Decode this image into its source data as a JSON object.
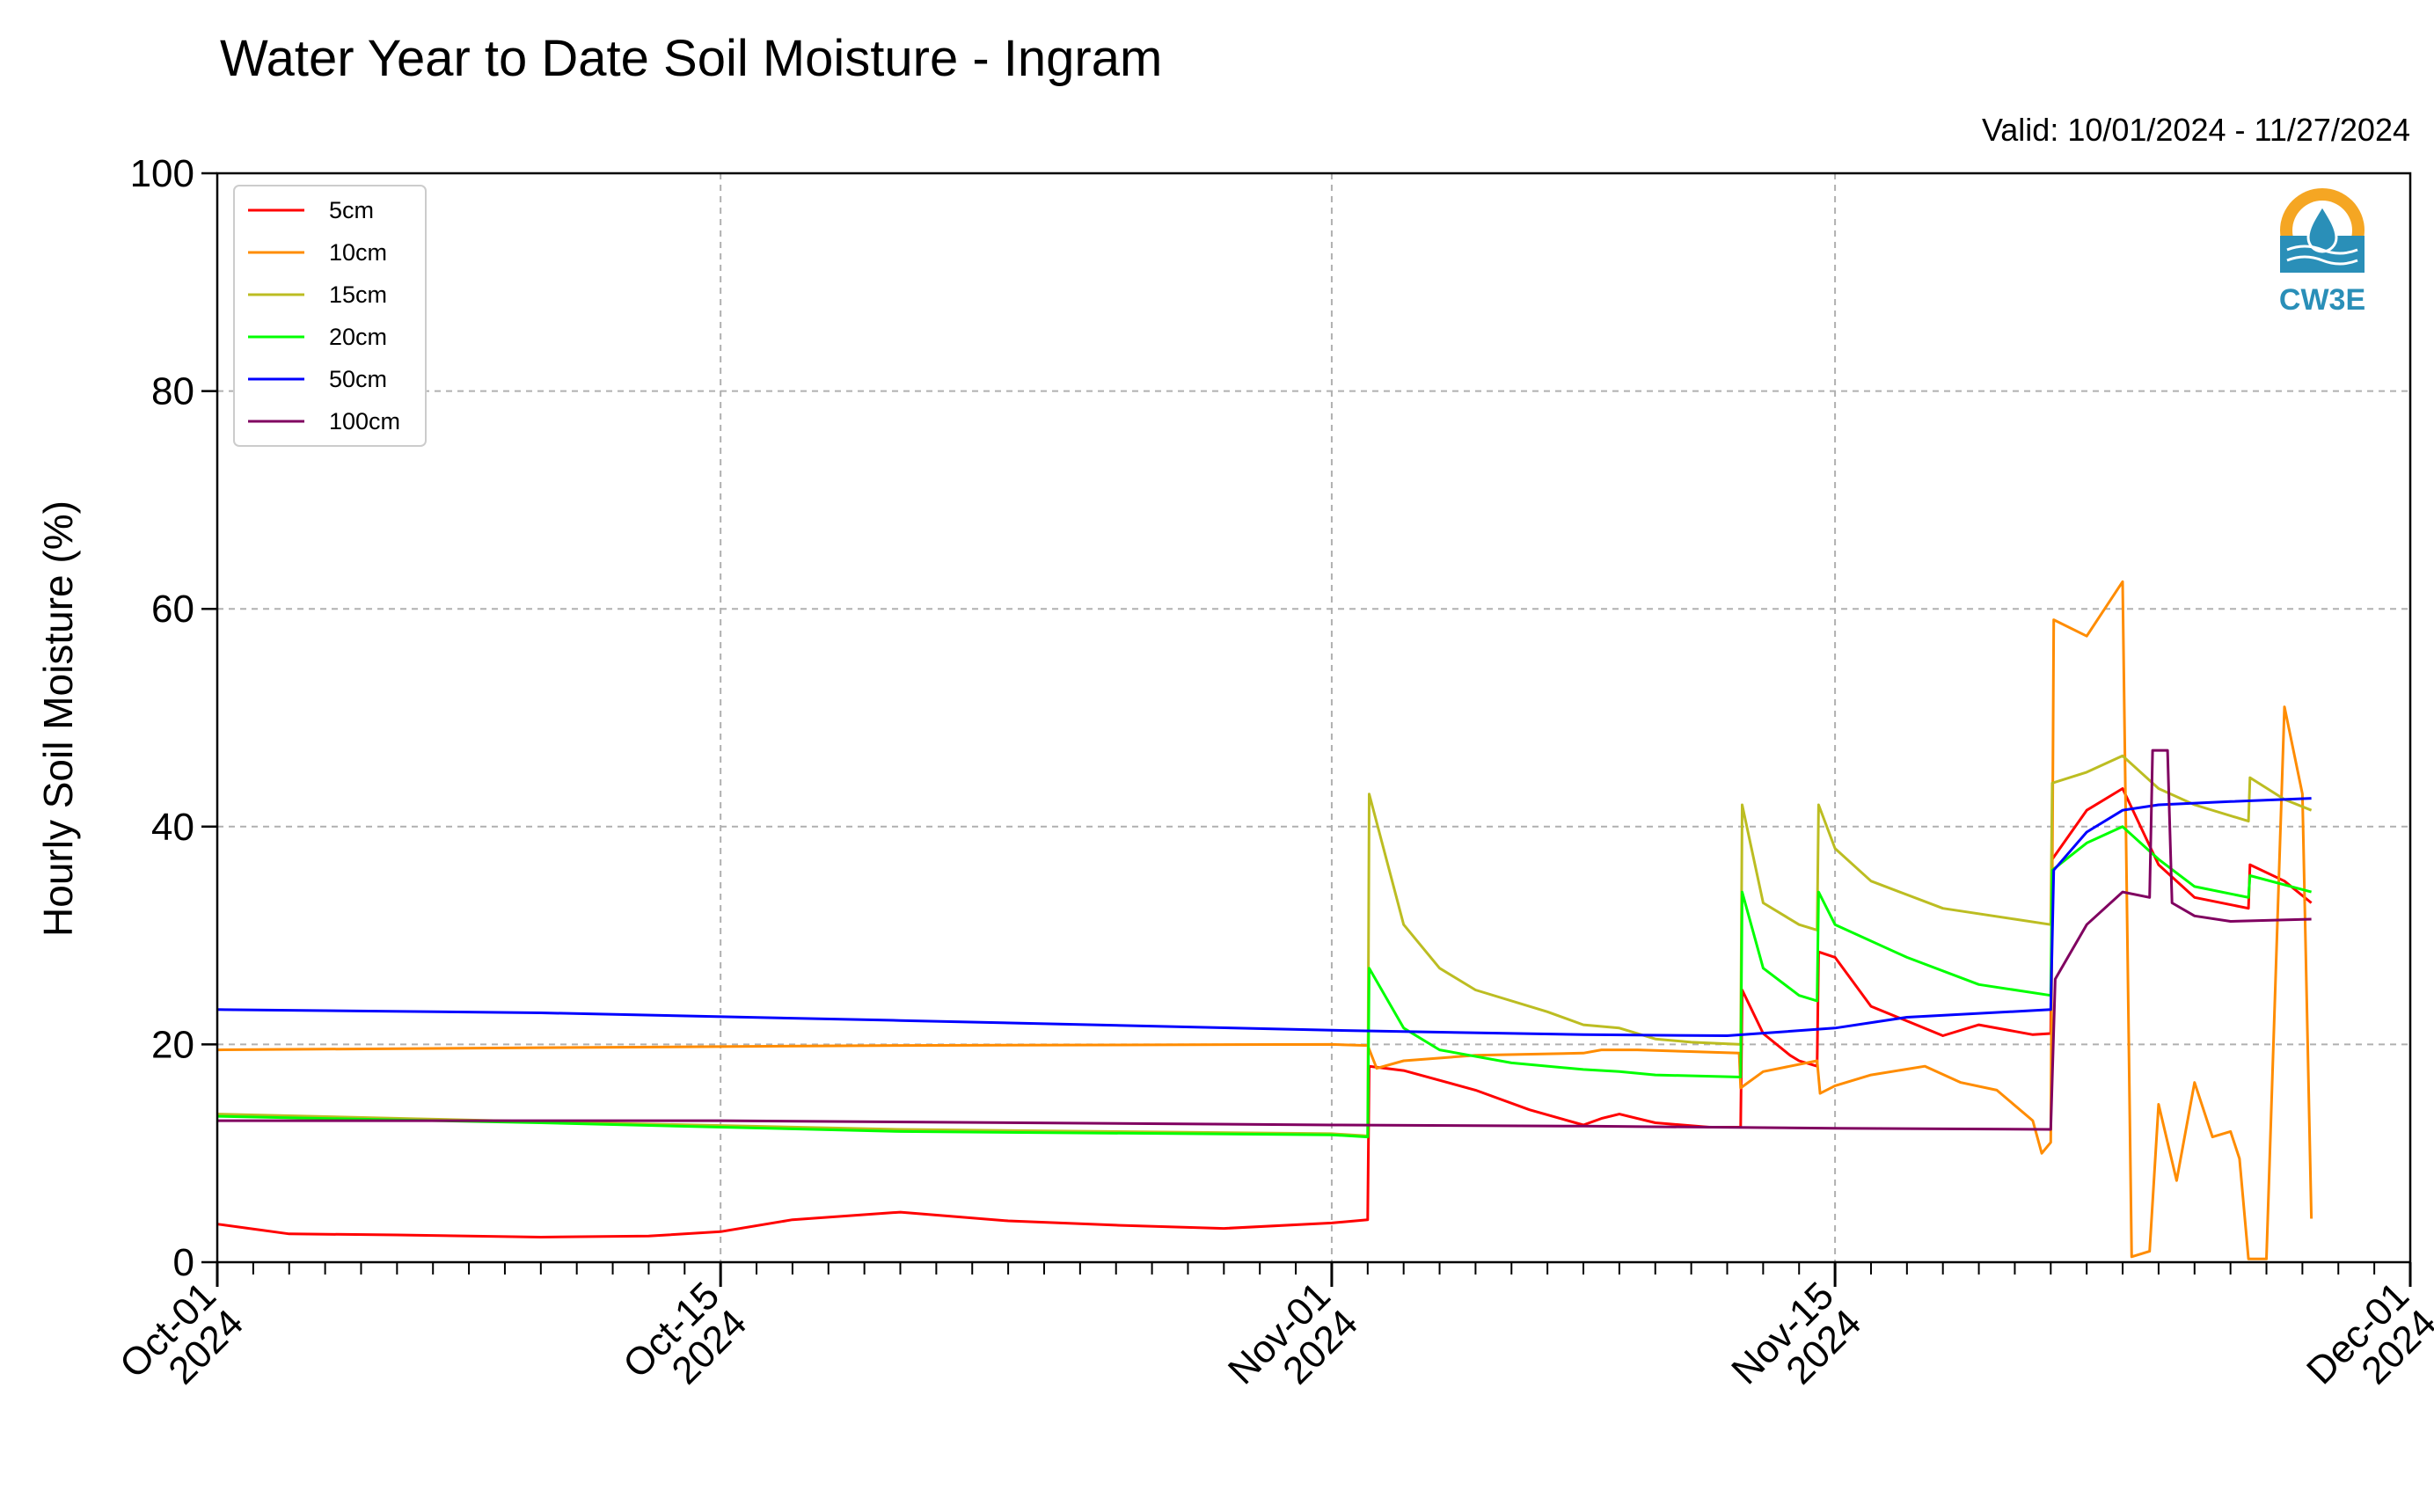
{
  "chart_data": {
    "type": "line",
    "title": "Water Year to Date Soil Moisture - Ingram",
    "subtitle": "Valid: 10/01/2024 - 11/27/2024",
    "ylabel": "Hourly Soil Moisture (%)",
    "xlabel": "",
    "x_range": [
      "2024-10-01",
      "2024-12-01"
    ],
    "ylim": [
      0,
      100
    ],
    "y_ticks": [
      0,
      20,
      40,
      60,
      80,
      100
    ],
    "x_ticks": [
      {
        "date": "2024-10-01",
        "label_line1": "Oct-01",
        "label_line2": "2024"
      },
      {
        "date": "2024-10-15",
        "label_line1": "Oct-15",
        "label_line2": "2024"
      },
      {
        "date": "2024-11-01",
        "label_line1": "Nov-01",
        "label_line2": "2024"
      },
      {
        "date": "2024-11-15",
        "label_line1": "Nov-15",
        "label_line2": "2024"
      },
      {
        "date": "2024-12-01",
        "label_line1": "Dec-01",
        "label_line2": "2024"
      }
    ],
    "grid": true,
    "legend_position": "top-left",
    "logo_text": "CW3E",
    "series": [
      {
        "name": "5cm",
        "color": "#ff0000",
        "points": [
          [
            "2024-10-01T00",
            3.5
          ],
          [
            "2024-10-03T00",
            2.6
          ],
          [
            "2024-10-06T00",
            2.5
          ],
          [
            "2024-10-10T00",
            2.3
          ],
          [
            "2024-10-13T00",
            2.4
          ],
          [
            "2024-10-15T00",
            2.8
          ],
          [
            "2024-10-17T00",
            3.9
          ],
          [
            "2024-10-20T00",
            4.6
          ],
          [
            "2024-10-23T00",
            3.8
          ],
          [
            "2024-10-26T00",
            3.4
          ],
          [
            "2024-10-29T00",
            3.1
          ],
          [
            "2024-11-01T00",
            3.6
          ],
          [
            "2024-11-02T00",
            3.9
          ],
          [
            "2024-11-02T01",
            18.0
          ],
          [
            "2024-11-03T00",
            17.6
          ],
          [
            "2024-11-05T00",
            15.8
          ],
          [
            "2024-11-06T12",
            14.0
          ],
          [
            "2024-11-08T00",
            12.6
          ],
          [
            "2024-11-08T12",
            13.2
          ],
          [
            "2024-11-09T00",
            13.6
          ],
          [
            "2024-11-10T00",
            12.8
          ],
          [
            "2024-11-11T12",
            12.4
          ],
          [
            "2024-11-12T09",
            12.4
          ],
          [
            "2024-11-12T10",
            25.0
          ],
          [
            "2024-11-13T00",
            21.0
          ],
          [
            "2024-11-13T18",
            19.0
          ],
          [
            "2024-11-14T00",
            18.5
          ],
          [
            "2024-11-14T12",
            18.0
          ],
          [
            "2024-11-14T13",
            28.5
          ],
          [
            "2024-11-15T00",
            28.0
          ],
          [
            "2024-11-16T00",
            23.5
          ],
          [
            "2024-11-18T00",
            20.8
          ],
          [
            "2024-11-19T00",
            21.8
          ],
          [
            "2024-11-20T12",
            20.9
          ],
          [
            "2024-11-21T00",
            21.0
          ],
          [
            "2024-11-21T01",
            37.0
          ],
          [
            "2024-11-22T00",
            41.5
          ],
          [
            "2024-11-23T00",
            43.5
          ],
          [
            "2024-11-24T00",
            36.5
          ],
          [
            "2024-11-25T00",
            33.5
          ],
          [
            "2024-11-26T12",
            32.5
          ],
          [
            "2024-11-26T13",
            36.5
          ],
          [
            "2024-11-27T12",
            35.0
          ],
          [
            "2024-11-28T06",
            33.0
          ]
        ]
      },
      {
        "name": "10cm",
        "color": "#ff8c00",
        "points": [
          [
            "2024-10-01T00",
            19.5
          ],
          [
            "2024-10-10T00",
            19.7
          ],
          [
            "2024-10-20T00",
            19.9
          ],
          [
            "2024-11-01T00",
            20.0
          ],
          [
            "2024-11-02T00",
            19.9
          ],
          [
            "2024-11-02T06",
            17.8
          ],
          [
            "2024-11-03T00",
            18.5
          ],
          [
            "2024-11-05T00",
            19.0
          ],
          [
            "2024-11-08T00",
            19.2
          ],
          [
            "2024-11-08T12",
            19.5
          ],
          [
            "2024-11-09T12",
            19.5
          ],
          [
            "2024-11-12T08",
            19.2
          ],
          [
            "2024-11-12T09",
            16.0
          ],
          [
            "2024-11-13T00",
            17.5
          ],
          [
            "2024-11-14T12",
            18.5
          ],
          [
            "2024-11-14T14",
            15.5
          ],
          [
            "2024-11-15T00",
            16.2
          ],
          [
            "2024-11-16T00",
            17.2
          ],
          [
            "2024-11-17T12",
            18.0
          ],
          [
            "2024-11-18T12",
            16.5
          ],
          [
            "2024-11-19T12",
            15.8
          ],
          [
            "2024-11-20T12",
            13.0
          ],
          [
            "2024-11-20T18",
            10.0
          ],
          [
            "2024-11-21T00",
            11.0
          ],
          [
            "2024-11-21T02",
            59.0
          ],
          [
            "2024-11-22T00",
            57.5
          ],
          [
            "2024-11-23T00",
            62.5
          ],
          [
            "2024-11-23T06",
            0.5
          ],
          [
            "2024-11-23T18",
            1.0
          ],
          [
            "2024-11-24T00",
            14.5
          ],
          [
            "2024-11-24T12",
            7.5
          ],
          [
            "2024-11-25T00",
            16.5
          ],
          [
            "2024-11-25T12",
            11.5
          ],
          [
            "2024-11-26T00",
            12.0
          ],
          [
            "2024-11-26T06",
            9.5
          ],
          [
            "2024-11-26T12",
            0.3
          ],
          [
            "2024-11-27T00",
            0.3
          ],
          [
            "2024-11-27T12",
            51.0
          ],
          [
            "2024-11-28T00",
            43.0
          ],
          [
            "2024-11-28T06",
            4.0
          ]
        ]
      },
      {
        "name": "15cm",
        "color": "#bcbd22",
        "points": [
          [
            "2024-10-01T00",
            13.6
          ],
          [
            "2024-10-10T00",
            12.9
          ],
          [
            "2024-10-20T00",
            12.2
          ],
          [
            "2024-11-01T00",
            11.8
          ],
          [
            "2024-11-02T00",
            11.6
          ],
          [
            "2024-11-02T01",
            43.0
          ],
          [
            "2024-11-03T00",
            31.0
          ],
          [
            "2024-11-04T00",
            27.0
          ],
          [
            "2024-11-05T00",
            25.0
          ],
          [
            "2024-11-07T00",
            23.0
          ],
          [
            "2024-11-08T00",
            21.8
          ],
          [
            "2024-11-09T00",
            21.5
          ],
          [
            "2024-11-10T00",
            20.5
          ],
          [
            "2024-11-11T00",
            20.2
          ],
          [
            "2024-11-12T09",
            20.0
          ],
          [
            "2024-11-12T10",
            42.0
          ],
          [
            "2024-11-13T00",
            33.0
          ],
          [
            "2024-11-14T00",
            31.0
          ],
          [
            "2024-11-14T12",
            30.5
          ],
          [
            "2024-11-14T13",
            42.0
          ],
          [
            "2024-11-15T00",
            38.0
          ],
          [
            "2024-11-16T00",
            35.0
          ],
          [
            "2024-11-18T00",
            32.5
          ],
          [
            "2024-11-20T00",
            31.5
          ],
          [
            "2024-11-21T00",
            31.0
          ],
          [
            "2024-11-21T01",
            44.0
          ],
          [
            "2024-11-22T00",
            45.0
          ],
          [
            "2024-11-23T00",
            46.5
          ],
          [
            "2024-11-24T00",
            43.5
          ],
          [
            "2024-11-25T00",
            42.0
          ],
          [
            "2024-11-26T12",
            40.5
          ],
          [
            "2024-11-26T13",
            44.5
          ],
          [
            "2024-11-27T12",
            42.5
          ],
          [
            "2024-11-28T06",
            41.5
          ]
        ]
      },
      {
        "name": "20cm",
        "color": "#00ff00",
        "points": [
          [
            "2024-10-01T00",
            13.4
          ],
          [
            "2024-10-10T00",
            12.8
          ],
          [
            "2024-10-20T00",
            12.0
          ],
          [
            "2024-11-01T00",
            11.7
          ],
          [
            "2024-11-02T00",
            11.5
          ],
          [
            "2024-11-02T01",
            27.0
          ],
          [
            "2024-11-03T00",
            21.5
          ],
          [
            "2024-11-04T00",
            19.5
          ],
          [
            "2024-11-06T00",
            18.3
          ],
          [
            "2024-11-08T00",
            17.7
          ],
          [
            "2024-11-09T00",
            17.5
          ],
          [
            "2024-11-10T00",
            17.2
          ],
          [
            "2024-11-12T09",
            17.0
          ],
          [
            "2024-11-12T10",
            34.0
          ],
          [
            "2024-11-13T00",
            27.0
          ],
          [
            "2024-11-14T00",
            24.5
          ],
          [
            "2024-11-14T12",
            24.0
          ],
          [
            "2024-11-14T13",
            34.0
          ],
          [
            "2024-11-15T00",
            31.0
          ],
          [
            "2024-11-17T00",
            28.0
          ],
          [
            "2024-11-19T00",
            25.5
          ],
          [
            "2024-11-21T00",
            24.5
          ],
          [
            "2024-11-21T01",
            36.0
          ],
          [
            "2024-11-22T00",
            38.5
          ],
          [
            "2024-11-23T00",
            40.0
          ],
          [
            "2024-11-24T00",
            37.0
          ],
          [
            "2024-11-25T00",
            34.5
          ],
          [
            "2024-11-26T12",
            33.5
          ],
          [
            "2024-11-26T13",
            35.5
          ],
          [
            "2024-11-28T06",
            34.0
          ]
        ]
      },
      {
        "name": "50cm",
        "color": "#0000ff",
        "points": [
          [
            "2024-10-01T00",
            23.2
          ],
          [
            "2024-10-10T00",
            22.9
          ],
          [
            "2024-10-20T00",
            22.2
          ],
          [
            "2024-11-01T00",
            21.3
          ],
          [
            "2024-11-08T00",
            20.9
          ],
          [
            "2024-11-12T00",
            20.8
          ],
          [
            "2024-11-15T00",
            21.5
          ],
          [
            "2024-11-17T00",
            22.5
          ],
          [
            "2024-11-21T00",
            23.2
          ],
          [
            "2024-11-21T02",
            36.0
          ],
          [
            "2024-11-22T00",
            39.5
          ],
          [
            "2024-11-23T00",
            41.5
          ],
          [
            "2024-11-24T00",
            42.0
          ],
          [
            "2024-11-26T00",
            42.3
          ],
          [
            "2024-11-28T06",
            42.6
          ]
        ]
      },
      {
        "name": "100cm",
        "color": "#800060",
        "points": [
          [
            "2024-10-01T00",
            13.0
          ],
          [
            "2024-10-15T00",
            13.0
          ],
          [
            "2024-11-01T00",
            12.6
          ],
          [
            "2024-11-08T00",
            12.5
          ],
          [
            "2024-11-15T00",
            12.3
          ],
          [
            "2024-11-21T00",
            12.2
          ],
          [
            "2024-11-21T03",
            26.0
          ],
          [
            "2024-11-22T00",
            31.0
          ],
          [
            "2024-11-23T00",
            34.0
          ],
          [
            "2024-11-23T18",
            33.5
          ],
          [
            "2024-11-23T20",
            47.0
          ],
          [
            "2024-11-24T06",
            47.0
          ],
          [
            "2024-11-24T09",
            33.0
          ],
          [
            "2024-11-25T00",
            31.8
          ],
          [
            "2024-11-26T00",
            31.3
          ],
          [
            "2024-11-28T06",
            31.5
          ]
        ]
      }
    ]
  }
}
